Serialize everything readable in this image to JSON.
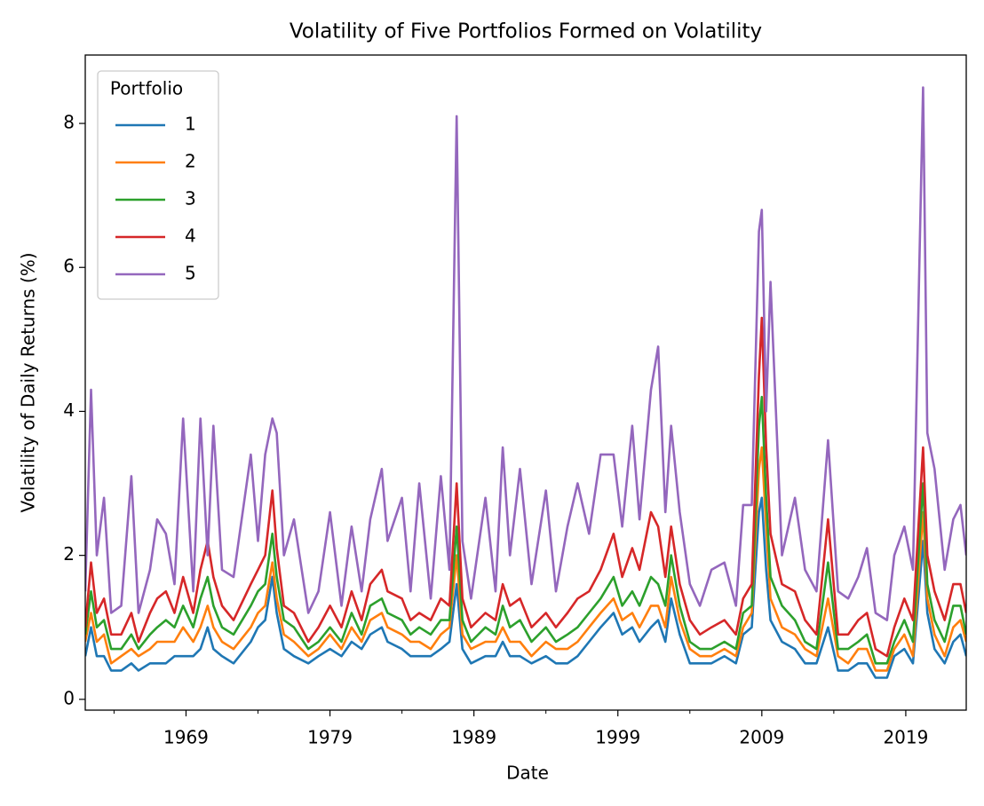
{
  "chart_data": {
    "type": "line",
    "title": "Volatility of Five Portfolios Formed on Volatility",
    "xlabel": "Date",
    "ylabel": "Volatility of Daily Returns (%)",
    "legend_title": "Portfolio",
    "legend": "upper left",
    "xlim": [
      1962,
      2023.2
    ],
    "xticks": [
      1969,
      1979,
      1989,
      1999,
      2009,
      2019
    ],
    "xminorticks": [
      1964,
      1974,
      1984,
      1994,
      2004,
      2014
    ],
    "ylim": [
      -0.15,
      8.95
    ],
    "yticks": [
      0,
      2,
      4,
      6,
      8
    ],
    "x": [
      1962.0,
      1962.4,
      1962.8,
      1963.3,
      1963.8,
      1964.5,
      1965.2,
      1965.7,
      1966.5,
      1967.0,
      1967.6,
      1968.2,
      1968.8,
      1969.5,
      1970.0,
      1970.5,
      1970.9,
      1971.5,
      1972.3,
      1973.5,
      1974.0,
      1974.5,
      1975.0,
      1975.3,
      1975.8,
      1976.5,
      1977.5,
      1978.2,
      1979.0,
      1979.8,
      1980.5,
      1981.2,
      1981.8,
      1982.6,
      1983.0,
      1984.0,
      1984.6,
      1985.2,
      1986.0,
      1986.7,
      1987.3,
      1987.8,
      1988.2,
      1988.8,
      1989.8,
      1990.5,
      1991.0,
      1991.5,
      1992.2,
      1993.0,
      1994.0,
      1994.7,
      1995.5,
      1996.2,
      1997.0,
      1997.8,
      1998.7,
      1999.3,
      2000.0,
      2000.5,
      2001.3,
      2001.8,
      2002.3,
      2002.7,
      2003.3,
      2004.0,
      2004.7,
      2005.5,
      2006.4,
      2007.2,
      2007.7,
      2008.3,
      2008.8,
      2009.0,
      2009.3,
      2009.6,
      2010.4,
      2011.3,
      2012.0,
      2012.8,
      2013.6,
      2014.3,
      2015.0,
      2015.7,
      2016.3,
      2016.9,
      2017.7,
      2018.2,
      2018.9,
      2019.5,
      2020.2,
      2020.5,
      2021.0,
      2021.7,
      2022.3,
      2022.8,
      2023.2
    ],
    "series": [
      {
        "name": "1",
        "color": "#1f77b4",
        "values": [
          0.6,
          1.0,
          0.6,
          0.6,
          0.4,
          0.4,
          0.5,
          0.4,
          0.5,
          0.5,
          0.5,
          0.6,
          0.6,
          0.6,
          0.7,
          1.0,
          0.7,
          0.6,
          0.5,
          0.8,
          1.0,
          1.1,
          1.7,
          1.2,
          0.7,
          0.6,
          0.5,
          0.6,
          0.7,
          0.6,
          0.8,
          0.7,
          0.9,
          1.0,
          0.8,
          0.7,
          0.6,
          0.6,
          0.6,
          0.7,
          0.8,
          1.6,
          0.7,
          0.5,
          0.6,
          0.6,
          0.8,
          0.6,
          0.6,
          0.5,
          0.6,
          0.5,
          0.5,
          0.6,
          0.8,
          1.0,
          1.2,
          0.9,
          1.0,
          0.8,
          1.0,
          1.1,
          0.8,
          1.4,
          0.9,
          0.5,
          0.5,
          0.5,
          0.6,
          0.5,
          0.9,
          1.0,
          2.6,
          2.8,
          1.8,
          1.1,
          0.8,
          0.7,
          0.5,
          0.5,
          1.0,
          0.4,
          0.4,
          0.5,
          0.5,
          0.3,
          0.3,
          0.6,
          0.7,
          0.5,
          2.2,
          1.2,
          0.7,
          0.5,
          0.8,
          0.9,
          0.6
        ]
      },
      {
        "name": "2",
        "color": "#ff7f0e",
        "values": [
          0.8,
          1.2,
          0.8,
          0.9,
          0.5,
          0.6,
          0.7,
          0.6,
          0.7,
          0.8,
          0.8,
          0.8,
          1.0,
          0.8,
          1.0,
          1.3,
          1.0,
          0.8,
          0.7,
          1.0,
          1.2,
          1.3,
          1.9,
          1.4,
          0.9,
          0.8,
          0.6,
          0.7,
          0.9,
          0.7,
          1.0,
          0.8,
          1.1,
          1.2,
          1.0,
          0.9,
          0.8,
          0.8,
          0.7,
          0.9,
          1.0,
          2.0,
          0.9,
          0.7,
          0.8,
          0.8,
          1.0,
          0.8,
          0.8,
          0.6,
          0.8,
          0.7,
          0.7,
          0.8,
          1.0,
          1.2,
          1.4,
          1.1,
          1.2,
          1.0,
          1.3,
          1.3,
          1.0,
          1.7,
          1.1,
          0.7,
          0.6,
          0.6,
          0.7,
          0.6,
          1.0,
          1.2,
          3.2,
          3.5,
          2.4,
          1.4,
          1.0,
          0.9,
          0.7,
          0.6,
          1.4,
          0.6,
          0.5,
          0.7,
          0.7,
          0.4,
          0.4,
          0.7,
          0.9,
          0.6,
          2.6,
          1.4,
          0.9,
          0.6,
          1.0,
          1.1,
          0.8
        ]
      },
      {
        "name": "3",
        "color": "#2ca02c",
        "values": [
          0.9,
          1.5,
          1.0,
          1.1,
          0.7,
          0.7,
          0.9,
          0.7,
          0.9,
          1.0,
          1.1,
          1.0,
          1.3,
          1.0,
          1.4,
          1.7,
          1.3,
          1.0,
          0.9,
          1.3,
          1.5,
          1.6,
          2.3,
          1.7,
          1.1,
          1.0,
          0.7,
          0.8,
          1.0,
          0.8,
          1.2,
          0.9,
          1.3,
          1.4,
          1.2,
          1.1,
          0.9,
          1.0,
          0.9,
          1.1,
          1.1,
          2.4,
          1.1,
          0.8,
          1.0,
          0.9,
          1.3,
          1.0,
          1.1,
          0.8,
          1.0,
          0.8,
          0.9,
          1.0,
          1.2,
          1.4,
          1.7,
          1.3,
          1.5,
          1.3,
          1.7,
          1.6,
          1.3,
          2.0,
          1.3,
          0.8,
          0.7,
          0.7,
          0.8,
          0.7,
          1.2,
          1.3,
          3.8,
          4.2,
          2.8,
          1.7,
          1.3,
          1.1,
          0.8,
          0.7,
          1.9,
          0.7,
          0.7,
          0.8,
          0.9,
          0.5,
          0.5,
          0.8,
          1.1,
          0.8,
          3.0,
          1.6,
          1.1,
          0.8,
          1.3,
          1.3,
          0.9
        ]
      },
      {
        "name": "4",
        "color": "#d62728",
        "values": [
          1.0,
          1.9,
          1.2,
          1.4,
          0.9,
          0.9,
          1.2,
          0.8,
          1.2,
          1.4,
          1.5,
          1.2,
          1.7,
          1.2,
          1.8,
          2.2,
          1.7,
          1.3,
          1.1,
          1.6,
          1.8,
          2.0,
          2.9,
          2.1,
          1.3,
          1.2,
          0.8,
          1.0,
          1.3,
          1.0,
          1.5,
          1.1,
          1.6,
          1.8,
          1.5,
          1.4,
          1.1,
          1.2,
          1.1,
          1.4,
          1.3,
          3.0,
          1.4,
          1.0,
          1.2,
          1.1,
          1.6,
          1.3,
          1.4,
          1.0,
          1.2,
          1.0,
          1.2,
          1.4,
          1.5,
          1.8,
          2.3,
          1.7,
          2.1,
          1.8,
          2.6,
          2.4,
          1.7,
          2.4,
          1.6,
          1.1,
          0.9,
          1.0,
          1.1,
          0.9,
          1.4,
          1.6,
          4.5,
          5.3,
          3.5,
          2.3,
          1.6,
          1.5,
          1.1,
          0.9,
          2.5,
          0.9,
          0.9,
          1.1,
          1.2,
          0.7,
          0.6,
          1.0,
          1.4,
          1.1,
          3.5,
          2.0,
          1.5,
          1.1,
          1.6,
          1.6,
          1.2
        ]
      },
      {
        "name": "5",
        "color": "#9467bd",
        "values": [
          1.5,
          4.3,
          2.0,
          2.8,
          1.2,
          1.3,
          3.1,
          1.2,
          1.8,
          2.5,
          2.3,
          1.6,
          3.9,
          1.5,
          3.9,
          2.0,
          3.8,
          1.8,
          1.7,
          3.4,
          2.2,
          3.4,
          3.9,
          3.7,
          2.0,
          2.5,
          1.2,
          1.5,
          2.6,
          1.3,
          2.4,
          1.5,
          2.5,
          3.2,
          2.2,
          2.8,
          1.5,
          3.0,
          1.4,
          3.1,
          1.8,
          8.1,
          2.2,
          1.4,
          2.8,
          1.5,
          3.5,
          2.0,
          3.2,
          1.6,
          2.9,
          1.5,
          2.4,
          3.0,
          2.3,
          3.4,
          3.4,
          2.4,
          3.8,
          2.5,
          4.3,
          4.9,
          2.6,
          3.8,
          2.6,
          1.6,
          1.3,
          1.8,
          1.9,
          1.3,
          2.7,
          2.7,
          6.5,
          6.8,
          4.0,
          5.8,
          2.0,
          2.8,
          1.8,
          1.5,
          3.6,
          1.5,
          1.4,
          1.7,
          2.1,
          1.2,
          1.1,
          2.0,
          2.4,
          1.8,
          8.5,
          3.7,
          3.2,
          1.8,
          2.5,
          2.7,
          2.0
        ]
      }
    ]
  }
}
